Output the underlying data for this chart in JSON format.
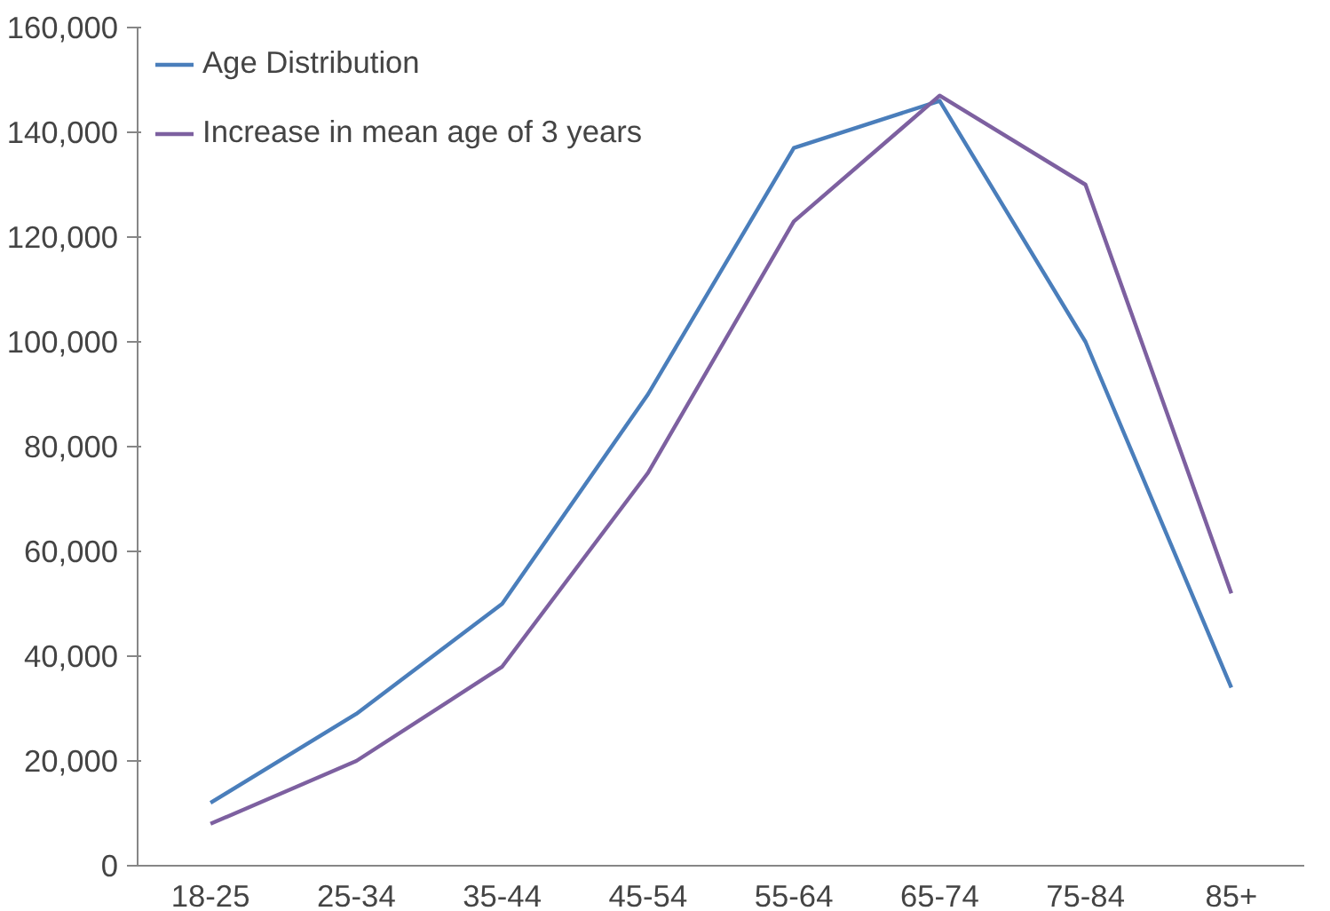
{
  "chart_data": {
    "type": "line",
    "categories": [
      "18-25",
      "25-34",
      "35-44",
      "45-54",
      "55-64",
      "65-74",
      "75-84",
      "85+"
    ],
    "series": [
      {
        "name": "Age Distribution",
        "color": "#4a7ebb",
        "values": [
          12000,
          29000,
          50000,
          90000,
          137000,
          146000,
          100000,
          34000
        ]
      },
      {
        "name": "Increase in mean age of 3 years",
        "color": "#7d60a0",
        "values": [
          8000,
          20000,
          38000,
          75000,
          123000,
          147000,
          130000,
          52000
        ]
      }
    ],
    "ylim": [
      0,
      160000
    ],
    "yticks": [
      {
        "value": 0,
        "label": "0"
      },
      {
        "value": 20000,
        "label": "20,000"
      },
      {
        "value": 40000,
        "label": "40,000"
      },
      {
        "value": 60000,
        "label": "60,000"
      },
      {
        "value": 80000,
        "label": "80,000"
      },
      {
        "value": 100000,
        "label": "100,000"
      },
      {
        "value": 120000,
        "label": "120,000"
      },
      {
        "value": 140000,
        "label": "140,000"
      },
      {
        "value": 160000,
        "label": "160,000"
      }
    ],
    "grid": false,
    "legend": "top left"
  }
}
